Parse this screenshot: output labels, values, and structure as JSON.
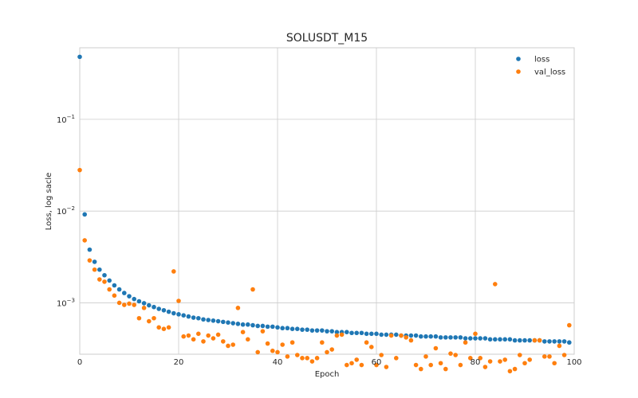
{
  "chart_data": {
    "type": "scatter",
    "title": "SOLUSDT_M15",
    "xlabel": "Epoch",
    "ylabel": "Loss, log sacle",
    "xlim": [
      0,
      100
    ],
    "ylim_log10": [
      -3.56,
      -0.22
    ],
    "yscale": "log",
    "x_ticks": [
      0,
      20,
      40,
      60,
      80,
      100
    ],
    "x_tick_labels": [
      "0",
      "20",
      "40",
      "60",
      "80",
      "100"
    ],
    "y_ticks": [
      -1,
      -2,
      -3
    ],
    "y_tick_base": "10",
    "y_tick_exponents": [
      "−1",
      "−2",
      "−3"
    ],
    "grid": true,
    "legend_position": "top-right",
    "series": [
      {
        "name": "loss",
        "color": "#1f77b4",
        "x": [
          0,
          1,
          2,
          3,
          4,
          5,
          6,
          7,
          8,
          9,
          10,
          11,
          12,
          13,
          14,
          15,
          16,
          17,
          18,
          19,
          20,
          21,
          22,
          23,
          24,
          25,
          26,
          27,
          28,
          29,
          30,
          31,
          32,
          33,
          34,
          35,
          36,
          37,
          38,
          39,
          40,
          41,
          42,
          43,
          44,
          45,
          46,
          47,
          48,
          49,
          50,
          51,
          52,
          53,
          54,
          55,
          56,
          57,
          58,
          59,
          60,
          61,
          62,
          63,
          64,
          65,
          66,
          67,
          68,
          69,
          70,
          71,
          72,
          73,
          74,
          75,
          76,
          77,
          78,
          79,
          80,
          81,
          82,
          83,
          84,
          85,
          86,
          87,
          88,
          89,
          90,
          91,
          92,
          93,
          94,
          95,
          96,
          97,
          98,
          99
        ],
        "y": [
          0.48,
          0.0092,
          0.0038,
          0.0028,
          0.0023,
          0.002,
          0.00175,
          0.00155,
          0.0014,
          0.00128,
          0.00118,
          0.0011,
          0.00104,
          0.00099,
          0.00094,
          0.0009,
          0.00086,
          0.00083,
          0.0008,
          0.00077,
          0.00075,
          0.00073,
          0.00071,
          0.00069,
          0.00068,
          0.00066,
          0.00065,
          0.00064,
          0.00063,
          0.00062,
          0.00061,
          0.0006,
          0.00059,
          0.00058,
          0.00058,
          0.00057,
          0.00056,
          0.00056,
          0.00055,
          0.00055,
          0.00054,
          0.00053,
          0.00053,
          0.00052,
          0.00052,
          0.00051,
          0.00051,
          0.0005,
          0.0005,
          0.0005,
          0.00049,
          0.00049,
          0.00048,
          0.00048,
          0.00048,
          0.00047,
          0.00047,
          0.00047,
          0.00046,
          0.00046,
          0.00046,
          0.00045,
          0.00045,
          0.00045,
          0.00045,
          0.00044,
          0.00044,
          0.00044,
          0.00044,
          0.00043,
          0.00043,
          0.00043,
          0.00043,
          0.00042,
          0.00042,
          0.00042,
          0.00042,
          0.00042,
          0.00041,
          0.00041,
          0.00041,
          0.00041,
          0.00041,
          0.0004,
          0.0004,
          0.0004,
          0.0004,
          0.0004,
          0.00039,
          0.00039,
          0.00039,
          0.00039,
          0.00039,
          0.00039,
          0.00038,
          0.00038,
          0.00038,
          0.00038,
          0.00038,
          0.00037
        ]
      },
      {
        "name": "val_loss",
        "color": "#ff7f0e",
        "x": [
          0,
          1,
          2,
          3,
          4,
          5,
          6,
          7,
          8,
          9,
          10,
          11,
          12,
          13,
          14,
          15,
          16,
          17,
          18,
          19,
          20,
          21,
          22,
          23,
          24,
          25,
          26,
          27,
          28,
          29,
          30,
          31,
          32,
          33,
          34,
          35,
          36,
          37,
          38,
          39,
          40,
          41,
          42,
          43,
          44,
          45,
          46,
          47,
          48,
          49,
          50,
          51,
          52,
          53,
          54,
          55,
          56,
          57,
          58,
          59,
          60,
          61,
          62,
          63,
          64,
          65,
          66,
          67,
          68,
          69,
          70,
          71,
          72,
          73,
          74,
          75,
          76,
          77,
          78,
          79,
          80,
          81,
          82,
          83,
          84,
          85,
          86,
          87,
          88,
          89,
          90,
          91,
          92,
          93,
          94,
          95,
          96,
          97,
          98,
          99
        ],
        "y": [
          0.028,
          0.0048,
          0.0029,
          0.0023,
          0.0018,
          0.0017,
          0.0014,
          0.0012,
          0.001,
          0.00095,
          0.00098,
          0.00095,
          0.00068,
          0.00088,
          0.00063,
          0.00068,
          0.00054,
          0.00052,
          0.00054,
          0.0022,
          0.00105,
          0.00043,
          0.00044,
          0.0004,
          0.00046,
          0.00038,
          0.00044,
          0.00041,
          0.00045,
          0.00038,
          0.00034,
          0.00035,
          0.00088,
          0.00048,
          0.0004,
          0.0014,
          0.00029,
          0.00049,
          0.00036,
          0.0003,
          0.00029,
          0.00035,
          0.00026,
          0.00037,
          0.00027,
          0.00025,
          0.00025,
          0.00023,
          0.00025,
          0.00037,
          0.00029,
          0.00031,
          0.00044,
          0.00045,
          0.00021,
          0.00022,
          0.00024,
          0.00021,
          0.00037,
          0.00033,
          0.00021,
          0.00027,
          0.0002,
          0.00044,
          0.00025,
          0.00044,
          0.00042,
          0.00039,
          0.00021,
          0.00019,
          0.00026,
          0.00021,
          0.00032,
          0.00022,
          0.00019,
          0.00028,
          0.00027,
          0.00021,
          0.00037,
          0.00025,
          0.00046,
          0.00025,
          0.0002,
          0.00023,
          0.0016,
          0.00023,
          0.00024,
          0.00018,
          0.00019,
          0.00027,
          0.00022,
          0.00024,
          0.00039,
          0.00039,
          0.00026,
          0.00026,
          0.00022,
          0.00034,
          0.00027,
          0.00057
        ]
      }
    ]
  }
}
